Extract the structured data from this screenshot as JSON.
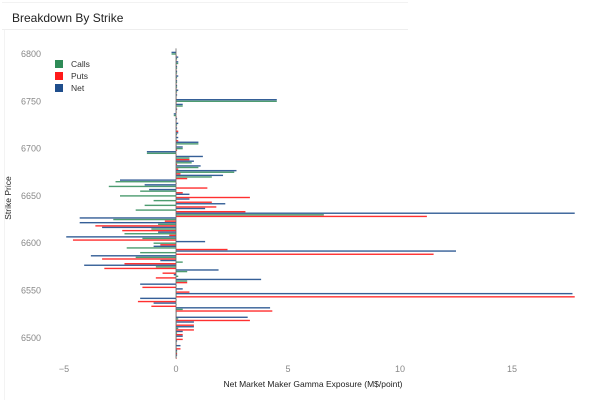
{
  "card": {
    "title": "Breakdown By Strike"
  },
  "chart_data": {
    "type": "bar",
    "orientation": "horizontal",
    "title": "Breakdown By Strike",
    "xlabel": "Net Market Maker Gamma Exposure (M$/point)",
    "ylabel": "Strike Price",
    "xlim": [
      -5.2,
      17.9
    ],
    "ylim": [
      6478,
      6806
    ],
    "xticks": [
      -5,
      0,
      5,
      10,
      15
    ],
    "xtick_labels": [
      "−5",
      "0",
      "5",
      "10",
      "15"
    ],
    "yticks": [
      6800,
      6750,
      6700,
      6650,
      6600,
      6550,
      6500
    ],
    "ytick_labels": [
      "6800",
      "6750",
      "6700",
      "6650",
      "6600",
      "6550",
      "6500"
    ],
    "grid": false,
    "legend_position": "top-left",
    "colors": {
      "Calls": "#2e8b57",
      "Puts": "#ff1a1a",
      "Net": "#1f4e8c"
    },
    "strikes": [
      6800,
      6795,
      6790,
      6785,
      6780,
      6775,
      6770,
      6765,
      6760,
      6755,
      6750,
      6745,
      6740,
      6735,
      6730,
      6725,
      6720,
      6715,
      6710,
      6705,
      6700,
      6695,
      6690,
      6685,
      6680,
      6675,
      6670,
      6665,
      6660,
      6655,
      6650,
      6645,
      6640,
      6635,
      6630,
      6625,
      6620,
      6615,
      6610,
      6605,
      6600,
      6595,
      6590,
      6585,
      6580,
      6575,
      6570,
      6565,
      6560,
      6555,
      6550,
      6545,
      6540,
      6535,
      6530,
      6525,
      6520,
      6515,
      6510,
      6505,
      6500,
      6495,
      6490,
      6485,
      6480
    ],
    "series": [
      {
        "name": "Calls",
        "values": [
          -0.2,
          0.05,
          0.1,
          0.05,
          0.05,
          0.05,
          0.05,
          0.05,
          0.05,
          0.0,
          4.5,
          0.3,
          0.0,
          -0.1,
          0.0,
          0.05,
          0.0,
          0.05,
          0.0,
          1.0,
          0.3,
          -1.3,
          0.6,
          0.7,
          1.0,
          2.6,
          1.6,
          -2.7,
          -3.0,
          -1.6,
          -2.5,
          -1.0,
          -1.4,
          -1.8,
          6.6,
          -2.8,
          -0.8,
          -1.1,
          -2.3,
          -1.5,
          -1.0,
          -2.2,
          -1.6,
          -1.8,
          0.3,
          -0.9,
          0.5,
          0.1,
          0.5,
          0.0,
          0.0,
          0.0,
          0.0,
          0.0,
          0.3,
          0.0,
          0.1,
          0.0,
          0.1,
          0.05,
          0.0,
          0.0,
          0.0,
          0.05,
          0.0
        ]
      },
      {
        "name": "Puts",
        "values": [
          0.0,
          0.0,
          0.0,
          0.0,
          0.0,
          0.0,
          0.0,
          0.0,
          0.0,
          0.0,
          0.0,
          0.0,
          0.0,
          0.0,
          0.0,
          0.0,
          0.1,
          0.0,
          0.1,
          0.0,
          0.05,
          0.0,
          0.6,
          0.05,
          0.1,
          0.2,
          0.5,
          0.0,
          1.4,
          0.3,
          3.3,
          1.6,
          1.8,
          3.1,
          11.2,
          -0.5,
          -3.6,
          -2.4,
          -0.3,
          -4.6,
          -0.7,
          2.3,
          11.5,
          -3.3,
          -2.3,
          -3.2,
          -0.6,
          -0.9,
          0.5,
          -1.5,
          0.6,
          17.8,
          -1.7,
          -1.1,
          4.3,
          0.0,
          3.3,
          0.8,
          0.8,
          0.3,
          0.3,
          0.0,
          0.2,
          0.05,
          0.0
        ]
      },
      {
        "name": "Net",
        "values": [
          -0.2,
          0.1,
          0.1,
          0.05,
          0.05,
          0.1,
          0.05,
          0.05,
          0.1,
          0.05,
          4.5,
          0.3,
          0.05,
          -0.1,
          0.05,
          0.1,
          0.05,
          0.1,
          0.1,
          1.0,
          0.3,
          -1.3,
          1.2,
          0.8,
          1.1,
          2.7,
          2.1,
          -2.5,
          -1.4,
          -1.2,
          0.6,
          0.6,
          2.2,
          1.3,
          17.8,
          -4.3,
          -4.3,
          -3.3,
          -0.8,
          -4.9,
          1.3,
          -1.0,
          12.5,
          -3.8,
          -0.7,
          -4.1,
          1.9,
          -0.1,
          3.8,
          -1.6,
          0.3,
          17.7,
          -1.6,
          -1.0,
          4.2,
          0.0,
          3.2,
          0.8,
          0.8,
          0.3,
          0.3,
          0.05,
          0.2,
          0.05,
          0.05
        ]
      }
    ]
  }
}
